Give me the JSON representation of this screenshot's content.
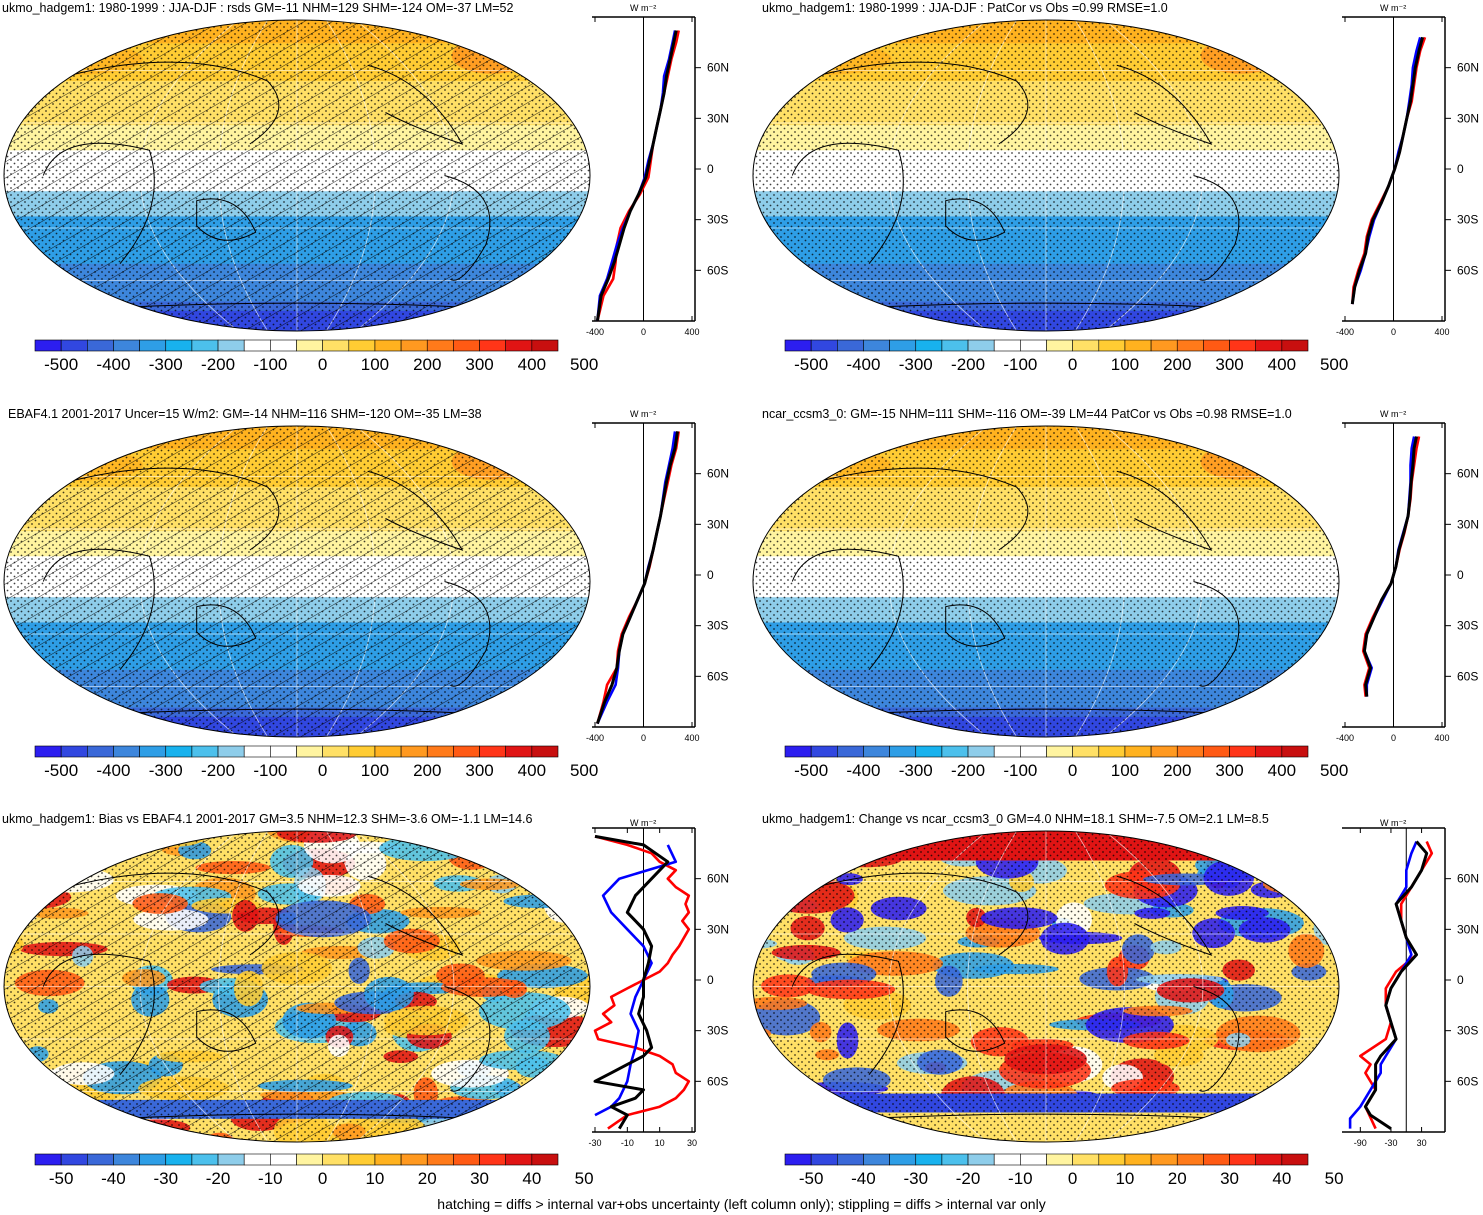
{
  "footer": "hatching = diffs > internal var+obs uncertainty (left column only); stippling = diffs > internal var only",
  "colors": {
    "scale": [
      "#2c1ef0",
      "#3147e0",
      "#3a68d8",
      "#3d86dc",
      "#2e9ee6",
      "#18b2ee",
      "#4cc0ec",
      "#8ecdea",
      "#ffffff",
      "#ffffff",
      "#fff4a0",
      "#ffe066",
      "#ffcc33",
      "#ffb21f",
      "#ff9920",
      "#ff7a1a",
      "#ff5a14",
      "#ff3518",
      "#e01414",
      "#c80f0f"
    ],
    "profile_red": "#ff0000",
    "profile_blue": "#0000ff",
    "profile_black": "#000000"
  },
  "chart_data": [
    {
      "type": "heatmap",
      "title": "ukmo_hadgem1: 1980-1999 : JJA-DJF : rsds GM=-11 NHM=129 SHM=-124 OM=-37 LM=52",
      "colorbar_ticks": [
        "-500",
        "-400",
        "-300",
        "-200",
        "-100",
        "0",
        "100",
        "200",
        "300",
        "400",
        "500"
      ],
      "profile": {
        "unit": "W m⁻²",
        "xticks": [
          "-400",
          "0",
          "400"
        ],
        "xlim": [
          -400,
          400
        ],
        "yticks": [
          "60N",
          "30N",
          "0",
          "30S",
          "60S"
        ],
        "series": [
          {
            "color": "red",
            "lat": [
              -90,
              -75,
              -65,
              -55,
              -45,
              -35,
              -25,
              -15,
              -5,
              5,
              15,
              25,
              35,
              45,
              55,
              65,
              75,
              82
            ],
            "value": [
              -380,
              -330,
              -250,
              -230,
              -220,
              -190,
              -120,
              -30,
              40,
              60,
              80,
              110,
              140,
              170,
              200,
              230,
              270,
              290
            ]
          },
          {
            "color": "blue",
            "lat": [
              -90,
              -75,
              -65,
              -55,
              -45,
              -35,
              -25,
              -15,
              -5,
              5,
              15,
              25,
              35,
              45,
              55,
              65,
              75,
              82
            ],
            "value": [
              -380,
              -360,
              -300,
              -260,
              -220,
              -170,
              -110,
              -40,
              10,
              40,
              80,
              110,
              140,
              160,
              170,
              210,
              240,
              260
            ]
          },
          {
            "color": "black",
            "lat": [
              -90,
              -75,
              -65,
              -55,
              -45,
              -35,
              -25,
              -15,
              -5,
              5,
              15,
              25,
              35,
              45,
              55,
              65,
              75,
              82
            ],
            "value": [
              -380,
              -350,
              -290,
              -240,
              -200,
              -160,
              -110,
              -40,
              20,
              50,
              80,
              110,
              140,
              170,
              190,
              220,
              250,
              270
            ]
          }
        ]
      }
    },
    {
      "type": "heatmap",
      "title": "ukmo_hadgem1: 1980-1999 : JJA-DJF : PatCor vs Obs =0.99 RMSE=1.0",
      "colorbar_ticks": [
        "-500",
        "-400",
        "-300",
        "-200",
        "-100",
        "0",
        "100",
        "200",
        "300",
        "400",
        "500"
      ],
      "profile": {
        "unit": "W m⁻²",
        "xticks": [
          "-400",
          "0",
          "400"
        ],
        "xlim": [
          -400,
          400
        ],
        "yticks": [
          "60N",
          "30N",
          "0",
          "30S",
          "60S"
        ],
        "series": [
          {
            "color": "red",
            "lat": [
              -80,
              -70,
              -60,
              -50,
              -40,
              -30,
              -20,
              -10,
              0,
              10,
              20,
              30,
              40,
              50,
              60,
              70,
              78
            ],
            "value": [
              -340,
              -330,
              -290,
              -240,
              -220,
              -180,
              -110,
              -40,
              10,
              50,
              80,
              110,
              150,
              170,
              190,
              220,
              260
            ]
          },
          {
            "color": "blue",
            "lat": [
              -80,
              -70,
              -60,
              -50,
              -40,
              -30,
              -20,
              -10,
              0,
              10,
              20,
              30,
              40,
              50,
              60,
              70,
              78
            ],
            "value": [
              -340,
              -320,
              -270,
              -230,
              -200,
              -160,
              -100,
              -40,
              10,
              40,
              80,
              110,
              130,
              150,
              160,
              190,
              220
            ]
          },
          {
            "color": "black",
            "lat": [
              -80,
              -70,
              -60,
              -50,
              -40,
              -30,
              -20,
              -10,
              0,
              10,
              20,
              30,
              40,
              50,
              60,
              70,
              78
            ],
            "value": [
              -340,
              -320,
              -280,
              -230,
              -210,
              -170,
              -100,
              -40,
              10,
              50,
              80,
              110,
              140,
              160,
              180,
              210,
              240
            ]
          }
        ]
      }
    },
    {
      "type": "heatmap",
      "title": "EBAF4.1 2001-2017 Uncer=15 W/m2: GM=-14 NHM=116 SHM=-120 OM=-35 LM=38",
      "colorbar_ticks": [
        "-500",
        "-400",
        "-300",
        "-200",
        "-100",
        "0",
        "100",
        "200",
        "300",
        "400",
        "500"
      ],
      "profile": {
        "unit": "W m⁻²",
        "xticks": [
          "-400",
          "0",
          "400"
        ],
        "xlim": [
          -400,
          400
        ],
        "yticks": [
          "60N",
          "30N",
          "0",
          "30S",
          "60S"
        ],
        "series": [
          {
            "color": "red",
            "lat": [
              -88,
              -75,
              -65,
              -55,
              -45,
              -35,
              -25,
              -15,
              -5,
              5,
              15,
              25,
              35,
              45,
              55,
              65,
              75,
              85
            ],
            "value": [
              -380,
              -330,
              -300,
              -220,
              -210,
              -180,
              -120,
              -50,
              10,
              50,
              80,
              110,
              140,
              170,
              200,
              230,
              270,
              290
            ]
          },
          {
            "color": "blue",
            "lat": [
              -88,
              -75,
              -65,
              -55,
              -45,
              -35,
              -25,
              -15,
              -5,
              5,
              15,
              25,
              35,
              45,
              55,
              65,
              75,
              85
            ],
            "value": [
              -380,
              -300,
              -230,
              -210,
              -200,
              -170,
              -110,
              -50,
              10,
              40,
              80,
              110,
              140,
              160,
              180,
              210,
              240,
              260
            ]
          },
          {
            "color": "black",
            "lat": [
              -88,
              -75,
              -65,
              -55,
              -45,
              -35,
              -25,
              -15,
              -5,
              5,
              15,
              25,
              35,
              45,
              55,
              65,
              75,
              85
            ],
            "value": [
              -380,
              -320,
              -260,
              -220,
              -200,
              -170,
              -110,
              -50,
              10,
              45,
              80,
              110,
              140,
              165,
              190,
              220,
              260,
              280
            ]
          }
        ]
      }
    },
    {
      "type": "heatmap",
      "title": "ncar_ccsm3_0: GM=-15 NHM=111 SHM=-116 OM=-39 LM=44 PatCor vs Obs =0.98 RMSE=1.0",
      "colorbar_ticks": [
        "-500",
        "-400",
        "-300",
        "-200",
        "-100",
        "0",
        "100",
        "200",
        "300",
        "400",
        "500"
      ],
      "profile": {
        "unit": "W m⁻²",
        "xticks": [
          "-400",
          "0",
          "400"
        ],
        "xlim": [
          -400,
          400
        ],
        "yticks": [
          "60N",
          "30N",
          "0",
          "30S",
          "60S"
        ],
        "series": [
          {
            "color": "red",
            "lat": [
              -72,
              -65,
              -55,
              -45,
              -35,
              -25,
              -15,
              -5,
              5,
              15,
              25,
              35,
              45,
              55,
              65,
              75,
              82
            ],
            "value": [
              -230,
              -240,
              -200,
              -250,
              -230,
              -170,
              -100,
              -20,
              20,
              50,
              90,
              120,
              140,
              150,
              170,
              190,
              210
            ]
          },
          {
            "color": "blue",
            "lat": [
              -72,
              -65,
              -55,
              -45,
              -35,
              -25,
              -15,
              -5,
              5,
              15,
              25,
              35,
              45,
              55,
              65,
              75,
              82
            ],
            "value": [
              -220,
              -220,
              -180,
              -240,
              -220,
              -160,
              -90,
              -20,
              20,
              40,
              80,
              120,
              130,
              140,
              140,
              150,
              170
            ]
          },
          {
            "color": "black",
            "lat": [
              -72,
              -65,
              -55,
              -45,
              -35,
              -25,
              -15,
              -5,
              5,
              15,
              25,
              35,
              45,
              55,
              65,
              75,
              82
            ],
            "value": [
              -220,
              -230,
              -190,
              -240,
              -220,
              -160,
              -100,
              -20,
              20,
              45,
              85,
              120,
              135,
              145,
              160,
              170,
              190
            ]
          }
        ]
      }
    },
    {
      "type": "heatmap",
      "title": "ukmo_hadgem1: Bias vs EBAF4.1 2001-2017 GM=3.5 NHM=12.3 SHM=-3.6 OM=-1.1 LM=14.6",
      "colorbar_ticks": [
        "-50",
        "-40",
        "-30",
        "-20",
        "-10",
        "0",
        "10",
        "20",
        "30",
        "40",
        "50"
      ],
      "profile": {
        "unit": "W m⁻²",
        "xticks": [
          "-30",
          "-10",
          "10",
          "30"
        ],
        "xlim": [
          -30,
          30
        ],
        "yticks": [
          "60N",
          "30N",
          "0",
          "30S",
          "60S"
        ],
        "series": [
          {
            "color": "red",
            "lat": [
              -88,
              -80,
              -75,
              -70,
              -65,
              -60,
              -55,
              -50,
              -45,
              -40,
              -35,
              -30,
              -25,
              -20,
              -15,
              -10,
              -5,
              0,
              5,
              10,
              15,
              20,
              25,
              30,
              35,
              40,
              45,
              50,
              55,
              60,
              65,
              70,
              75,
              80,
              85
            ],
            "value": [
              -22,
              -10,
              10,
              20,
              25,
              28,
              20,
              18,
              10,
              -5,
              -28,
              -30,
              -20,
              -25,
              -18,
              -20,
              -10,
              0,
              10,
              15,
              18,
              22,
              25,
              28,
              24,
              28,
              26,
              28,
              20,
              15,
              20,
              10,
              5,
              -10,
              -30
            ]
          },
          {
            "color": "blue",
            "lat": [
              -80,
              -75,
              -70,
              -60,
              -50,
              -40,
              -30,
              -20,
              -10,
              0,
              10,
              20,
              30,
              40,
              50,
              60,
              70,
              80
            ],
            "value": [
              -30,
              -20,
              -15,
              -10,
              -8,
              -5,
              -3,
              -8,
              -5,
              0,
              5,
              0,
              -10,
              -20,
              -25,
              -15,
              20,
              15
            ]
          },
          {
            "color": "black",
            "lat": [
              -88,
              -80,
              -75,
              -70,
              -65,
              -60,
              -55,
              -50,
              -45,
              -40,
              -30,
              -20,
              -10,
              0,
              10,
              20,
              30,
              40,
              50,
              60,
              70,
              80,
              85
            ],
            "value": [
              -15,
              -10,
              -20,
              -5,
              0,
              -30,
              -20,
              -10,
              0,
              5,
              2,
              -3,
              0,
              0,
              3,
              5,
              0,
              -10,
              -5,
              5,
              15,
              0,
              -30
            ]
          }
        ]
      }
    },
    {
      "type": "heatmap",
      "title": "ukmo_hadgem1: Change vs ncar_ccsm3_0 GM=4.0 NHM=18.1 SHM=-7.5 OM=2.1 LM=8.5",
      "colorbar_ticks": [
        "-50",
        "-40",
        "-30",
        "-20",
        "-10",
        "0",
        "10",
        "20",
        "30",
        "40",
        "50"
      ],
      "profile": {
        "unit": "W m⁻²",
        "xticks": [
          "-90",
          "-30",
          "30"
        ],
        "xlim": [
          -120,
          70
        ],
        "yticks": [
          "60N",
          "30N",
          "0",
          "30S",
          "60S"
        ],
        "series": [
          {
            "color": "red",
            "lat": [
              -88,
              -75,
              -65,
              -55,
              -50,
              -45,
              -35,
              -25,
              -15,
              -5,
              5,
              15,
              25,
              35,
              45,
              55,
              65,
              75,
              82
            ],
            "value": [
              -60,
              -80,
              -60,
              -80,
              -70,
              -90,
              -40,
              -30,
              -40,
              -40,
              -20,
              20,
              0,
              -10,
              -10,
              10,
              30,
              50,
              40
            ]
          },
          {
            "color": "blue",
            "lat": [
              -88,
              -82,
              -75,
              -65,
              -55,
              -50,
              -45,
              -35,
              -25,
              -15,
              -5,
              5,
              15,
              25,
              35,
              45,
              55,
              65,
              75,
              82
            ],
            "value": [
              -110,
              -110,
              -90,
              -70,
              -50,
              -50,
              -40,
              -20,
              -30,
              -40,
              -30,
              -10,
              10,
              0,
              -10,
              -20,
              0,
              0,
              10,
              20
            ]
          },
          {
            "color": "black",
            "lat": [
              -88,
              -80,
              -75,
              -65,
              -55,
              -50,
              -45,
              -35,
              -25,
              -15,
              -5,
              5,
              15,
              25,
              35,
              45,
              55,
              65,
              75,
              82
            ],
            "value": [
              -30,
              -70,
              -80,
              -60,
              -60,
              -60,
              -50,
              -20,
              -30,
              -40,
              -30,
              -10,
              20,
              0,
              -10,
              -20,
              10,
              30,
              40,
              20
            ]
          }
        ]
      }
    }
  ]
}
